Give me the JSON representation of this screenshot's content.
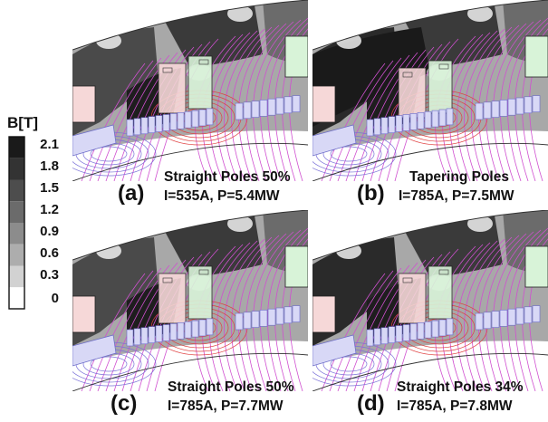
{
  "legend": {
    "title": "B[T]",
    "ticks": [
      "2.1",
      "1.8",
      "1.5",
      "1.2",
      "0.9",
      "0.6",
      "0.3",
      "0"
    ],
    "swatch_colors": [
      "#1a1a1a",
      "#333333",
      "#4d4d4d",
      "#6b6b6b",
      "#8c8c8c",
      "#adadad",
      "#d2d2d2",
      "#ffffff"
    ]
  },
  "colors": {
    "field_lines_outer": "#d050d0",
    "field_lines_inner": "#e04040",
    "field_lines_low": "#7a70d8",
    "coil_red": "#f6d8d8",
    "coil_green": "#d8f3d8",
    "coil_blue": "#d8d8f6"
  },
  "panels": [
    {
      "letter": "(a)",
      "line1": "Straight Poles 50%",
      "line2": "I=535A, P=5.4MW"
    },
    {
      "letter": "(b)",
      "line1": "Tapering Poles",
      "line2": "I=785A, P=7.5MW"
    },
    {
      "letter": "(c)",
      "line1": "Straight Poles 50%",
      "line2": "I=785A, P=7.7MW"
    },
    {
      "letter": "(d)",
      "line1": "Straight Poles 34%",
      "line2": "I=785A, P=7.8MW"
    }
  ]
}
